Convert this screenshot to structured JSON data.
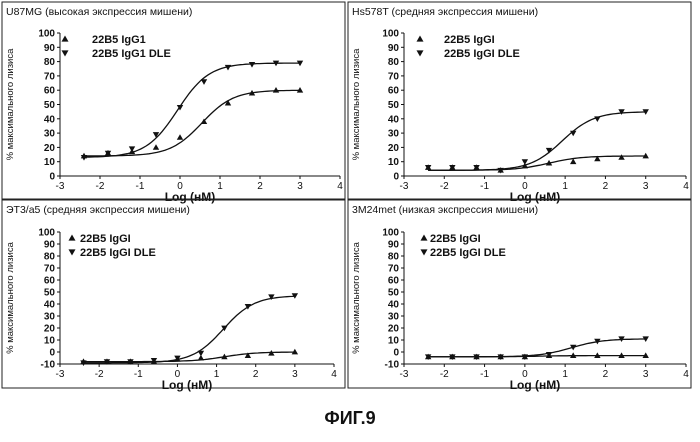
{
  "figure_caption": "ФИГ.9",
  "chart_data": [
    {
      "type": "scatter",
      "title": "U87MG (высокая экспрессия мишени)",
      "xlabel": "Log (нМ)",
      "ylabel": "% максимального лизиса",
      "xlim": [
        -3,
        4
      ],
      "ylim": [
        0,
        100
      ],
      "xticks": [
        -3,
        -2,
        -1,
        0,
        1,
        2,
        3,
        4
      ],
      "yticks": [
        0,
        10,
        20,
        30,
        40,
        50,
        60,
        70,
        80,
        90,
        100
      ],
      "grid": false,
      "legend": "top-left",
      "series": [
        {
          "name": "22B5 IgG1",
          "marker": "triangle-up",
          "x": [
            -2.4,
            -1.8,
            -1.2,
            -0.6,
            0.0,
            0.6,
            1.2,
            1.8,
            2.4,
            3.0
          ],
          "y": [
            14,
            16,
            17,
            20,
            27,
            38,
            51,
            58,
            60,
            60
          ]
        },
        {
          "name": "22B5 IgG1 DLE",
          "marker": "triangle-down",
          "x": [
            -2.4,
            -1.8,
            -1.2,
            -0.6,
            0.0,
            0.6,
            1.2,
            1.8,
            2.4,
            3.0
          ],
          "y": [
            13,
            16,
            19,
            29,
            48,
            66,
            76,
            78,
            79,
            79
          ]
        }
      ]
    },
    {
      "type": "scatter",
      "title": "Hs578T (средняя экспрессия мишени)",
      "xlabel": "Log (нМ)",
      "ylabel": "% максимального лизиса",
      "xlim": [
        -3,
        4
      ],
      "ylim": [
        0,
        100
      ],
      "xticks": [
        -3,
        -2,
        -1,
        0,
        1,
        2,
        3,
        4
      ],
      "yticks": [
        0,
        10,
        20,
        30,
        40,
        50,
        60,
        70,
        80,
        90,
        100
      ],
      "grid": false,
      "legend": "top-left",
      "series": [
        {
          "name": "22B5 IgGI",
          "marker": "triangle-up",
          "x": [
            -2.4,
            -1.8,
            -1.2,
            -0.6,
            0.0,
            0.6,
            1.2,
            1.8,
            2.4,
            3.0
          ],
          "y": [
            6,
            6,
            6,
            4,
            7,
            9,
            10,
            12,
            13,
            14
          ]
        },
        {
          "name": "22B5 IgGI DLE",
          "marker": "triangle-down",
          "x": [
            -2.4,
            -1.8,
            -1.2,
            -0.6,
            0.0,
            0.6,
            1.2,
            1.8,
            2.4,
            3.0
          ],
          "y": [
            6,
            6,
            6,
            4,
            10,
            18,
            30,
            40,
            45,
            45
          ]
        }
      ]
    },
    {
      "type": "scatter",
      "title": "ЭТ3/а5 (средняя экспрессия мишени)",
      "xlabel": "Log (нМ)",
      "ylabel": "% максимального лизиса",
      "xlim": [
        -3,
        4
      ],
      "ylim": [
        -10,
        100
      ],
      "xticks": [
        -3,
        -2,
        -1,
        0,
        1,
        2,
        3,
        4
      ],
      "yticks": [
        -10,
        0,
        10,
        20,
        30,
        40,
        50,
        60,
        70,
        80,
        90,
        100
      ],
      "grid": false,
      "legend": "top-left",
      "series": [
        {
          "name": "22B5 IgGI",
          "marker": "triangle-up",
          "x": [
            -2.4,
            -1.8,
            -1.2,
            -0.6,
            0.0,
            0.6,
            1.2,
            1.8,
            2.4,
            3.0
          ],
          "y": [
            -8,
            -8,
            -8,
            -8,
            -6,
            -5,
            -4,
            -3,
            -1,
            0
          ]
        },
        {
          "name": "22B5 IgGI DLE",
          "marker": "triangle-down",
          "x": [
            -2.4,
            -1.8,
            -1.2,
            -0.6,
            0.0,
            0.6,
            1.2,
            1.8,
            2.4,
            3.0
          ],
          "y": [
            -9,
            -8,
            -8,
            -7,
            -5,
            -1,
            20,
            38,
            46,
            47
          ]
        }
      ]
    },
    {
      "type": "scatter",
      "title": "3M24met (низкая экспрессия мишени)",
      "xlabel": "Log (нМ)",
      "ylabel": "% максимального лизиса",
      "xlim": [
        -3,
        4
      ],
      "ylim": [
        -10,
        100
      ],
      "xticks": [
        -3,
        -2,
        -1,
        0,
        1,
        2,
        3,
        4
      ],
      "yticks": [
        -10,
        0,
        10,
        20,
        30,
        40,
        50,
        60,
        70,
        80,
        90,
        100
      ],
      "grid": false,
      "legend": "top-left",
      "series": [
        {
          "name": "22B5 IgGI",
          "marker": "triangle-up",
          "x": [
            -2.4,
            -1.8,
            -1.2,
            -0.6,
            0.0,
            0.6,
            1.2,
            1.8,
            2.4,
            3.0
          ],
          "y": [
            -4,
            -4,
            -4,
            -4,
            -4,
            -3,
            -3,
            -3,
            -3,
            -3
          ]
        },
        {
          "name": "22B5 IgGI DLE",
          "marker": "triangle-down",
          "x": [
            -2.4,
            -1.8,
            -1.2,
            -0.6,
            0.0,
            0.6,
            1.2,
            1.8,
            2.4,
            3.0
          ],
          "y": [
            -4,
            -4,
            -4,
            -4,
            -4,
            -2,
            4,
            9,
            11,
            11
          ]
        }
      ]
    }
  ]
}
